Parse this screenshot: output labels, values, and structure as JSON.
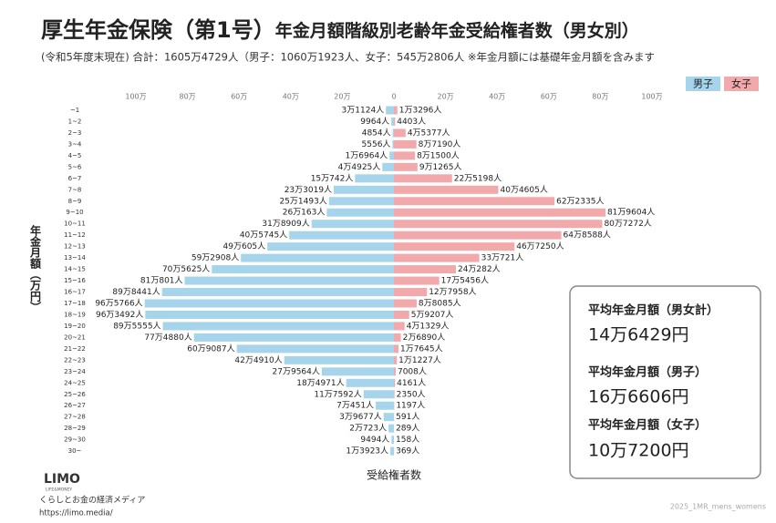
{
  "chart_data": {
    "type": "pyramid",
    "title": "厚生年金保険（第1号）",
    "title_rest": "年金月額階級別老齢年金受給権者数（男女別）",
    "subtitle": "(令和5年度末現在) 合計：1605万4729人（男子：1060万1923人、女子：545万2806人 ※年金月額には基礎年金月額を含みます",
    "y_label": "年金月額（万円）",
    "x_label": "受給権者数",
    "xlim": [
      0,
      1000000
    ],
    "categories": [
      "~1",
      "1~2",
      "2~3",
      "3~4",
      "4~5",
      "5~6",
      "6~7",
      "7~8",
      "8~9",
      "9~10",
      "10~11",
      "11~12",
      "12~13",
      "13~14",
      "14~15",
      "15~16",
      "16~17",
      "17~18",
      "18~19",
      "19~20",
      "20~21",
      "21~22",
      "22~23",
      "23~24",
      "24~25",
      "25~26",
      "26~27",
      "27~28",
      "28~29",
      "29~30",
      "30~"
    ],
    "series": [
      {
        "name": "男子",
        "color": "#a6d4ea",
        "side": "left",
        "xticks": [
          {
            "value": 1000000,
            "label": "100万"
          },
          {
            "value": 800000,
            "label": "80万"
          },
          {
            "value": 600000,
            "label": "60万"
          },
          {
            "value": 400000,
            "label": "40万"
          },
          {
            "value": 200000,
            "label": "20万"
          },
          0
        ],
        "values": [
          31124,
          9964,
          4854,
          5556,
          16964,
          44925,
          150742,
          233019,
          251493,
          260163,
          318909,
          405745,
          490605,
          592908,
          705625,
          810801,
          898441,
          965766,
          963492,
          895555,
          774880,
          609087,
          424910,
          279564,
          184971,
          117592,
          70451,
          39677,
          20723,
          9494,
          13923
        ],
        "value_labels": [
          "3万1124人",
          "9964人",
          "4854人",
          "5556人",
          "1万6964人",
          "4万4925人",
          "15万742人",
          "23万3019人",
          "25万1493人",
          "26万163人",
          "31万8909人",
          "40万5745人",
          "49万605人",
          "59万2908人",
          "70万5625人",
          "81万801人",
          "89万8441人",
          "96万5766人",
          "96万3492人",
          "89万5555人",
          "77万4880人",
          "60万9087人",
          "42万4910人",
          "27万9564人",
          "18万4971人",
          "11万7592人",
          "7万451人",
          "3万9677人",
          "2万723人",
          "9494人",
          "1万3923人"
        ]
      },
      {
        "name": "女子",
        "color": "#f2a9ab",
        "side": "right",
        "xticks": [
          {
            "value": 200000,
            "label": "20万"
          },
          {
            "value": 400000,
            "label": "40万"
          },
          {
            "value": 600000,
            "label": "60万"
          },
          {
            "value": 800000,
            "label": "80万"
          },
          {
            "value": 1000000,
            "label": "100万"
          }
        ],
        "values": [
          13296,
          4403,
          45377,
          87190,
          81500,
          91265,
          225198,
          404605,
          622335,
          819604,
          807272,
          648588,
          467250,
          330721,
          240282,
          175456,
          127958,
          88085,
          59207,
          41329,
          26890,
          17645,
          11227,
          7008,
          4161,
          2350,
          1197,
          591,
          289,
          158,
          369
        ],
        "value_labels": [
          "1万3296人",
          "4403人",
          "4万5377人",
          "8万7190人",
          "8万1500人",
          "9万1265人",
          "22万5198人",
          "40万4605人",
          "62万2335人",
          "81万9604人",
          "80万7272人",
          "64万8588人",
          "46万7250人",
          "33万721人",
          "24万282人",
          "17万5456人",
          "12万7958人",
          "8万8085人",
          "5万9207人",
          "4万1329人",
          "2万6890人",
          "1万7645人",
          "1万1227人",
          "7008人",
          "4161人",
          "2350人",
          "1197人",
          "591人",
          "289人",
          "158人",
          "369人"
        ]
      }
    ]
  },
  "summary": [
    {
      "label": "平均年金月額（男女計）",
      "value": "14万6429円"
    },
    {
      "label": "平均年金月額（男子）",
      "value": "16万6606円"
    },
    {
      "label": "平均年金月額（女子）",
      "value": "10万7200円"
    }
  ],
  "footer": {
    "logo": "LIMO",
    "logo_sub": "LIFE&MONEY",
    "tagline": "くらしとお金の経済メディア",
    "url": "https://limo.media/",
    "code": "2025_1MR_mens_womens"
  }
}
